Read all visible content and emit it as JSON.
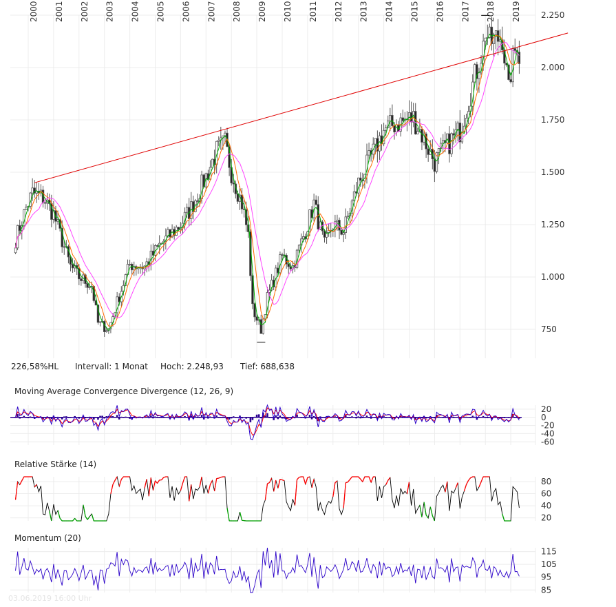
{
  "info": {
    "perf": "226,58%HL",
    "interval": "Intervall: 1 Monat",
    "high": "Hoch:  2.248,93",
    "low": "Tief:  688,638"
  },
  "footer": "03.06.2019 16:00 Uhr",
  "colors": {
    "up_candle": "#ffffff",
    "down_candle": "#222222",
    "candle_border": "#555555",
    "ma_short": "#00b000",
    "ma_mid": "#ff6a00",
    "ma_long": "#ff44ff",
    "trendline": "#e00000",
    "macd": "#2a00c8",
    "signal": "#ff0000",
    "histogram": "#2a0090",
    "rsi": "#000000",
    "rsi_extreme": "#ff0000",
    "momentum": "#2a00c8",
    "grid": "#ececec"
  },
  "chart_data": [
    {
      "type": "candlestick",
      "interval": "monthly",
      "x_ticks": [
        "2000",
        "2001",
        "2002",
        "2003",
        "2004",
        "2005",
        "2006",
        "2007",
        "2008",
        "2009",
        "2010",
        "2011",
        "2012",
        "2013",
        "2014",
        "2015",
        "2016",
        "2017",
        "2018",
        "2019"
      ],
      "y_ticks": [
        "750",
        "1.000",
        "1.250",
        "1.500",
        "1.750",
        "2.000",
        "2.250"
      ],
      "ylim": [
        620,
        2320
      ],
      "grid": true,
      "close_anchors": [
        [
          "1999-07",
          1180
        ],
        [
          "1999-12",
          1330
        ],
        [
          "2000-03",
          1400
        ],
        [
          "2000-08",
          1380
        ],
        [
          "2001-01",
          1300
        ],
        [
          "2001-09",
          1050
        ],
        [
          "2002-01",
          1000
        ],
        [
          "2002-07",
          960
        ],
        [
          "2002-10",
          780
        ],
        [
          "2003-03",
          750
        ],
        [
          "2003-07",
          880
        ],
        [
          "2004-01",
          1060
        ],
        [
          "2004-08",
          1050
        ],
        [
          "2005-03",
          1150
        ],
        [
          "2006-01",
          1250
        ],
        [
          "2006-06",
          1330
        ],
        [
          "2007-01",
          1480
        ],
        [
          "2007-06",
          1600
        ],
        [
          "2007-10",
          1640
        ],
        [
          "2008-01",
          1500
        ],
        [
          "2008-06",
          1350
        ],
        [
          "2008-09",
          1200
        ],
        [
          "2008-11",
          850
        ],
        [
          "2009-03",
          750
        ],
        [
          "2009-06",
          900
        ],
        [
          "2010-01",
          1100
        ],
        [
          "2010-06",
          1050
        ],
        [
          "2011-01",
          1250
        ],
        [
          "2011-04",
          1350
        ],
        [
          "2011-09",
          1150
        ],
        [
          "2012-01",
          1250
        ],
        [
          "2012-06",
          1220
        ],
        [
          "2013-01",
          1450
        ],
        [
          "2013-06",
          1550
        ],
        [
          "2014-01",
          1700
        ],
        [
          "2014-06",
          1730
        ],
        [
          "2015-03",
          1760
        ],
        [
          "2015-06",
          1700
        ],
        [
          "2016-01",
          1550
        ],
        [
          "2016-06",
          1620
        ],
        [
          "2017-01",
          1700
        ],
        [
          "2017-06",
          1880
        ],
        [
          "2017-12",
          2100
        ],
        [
          "2018-01",
          2180
        ],
        [
          "2018-03",
          2120
        ],
        [
          "2018-09",
          2150
        ],
        [
          "2018-12",
          1880
        ],
        [
          "2019-01",
          1980
        ],
        [
          "2019-04",
          2130
        ],
        [
          "2019-05",
          2060
        ]
      ],
      "high_mark": 2248.93,
      "low_mark": 688.638,
      "moving_averages": [
        "short",
        "mid",
        "long"
      ],
      "trendline": [
        [
          "2000-04",
          1450
        ],
        [
          "2021-04",
          2165
        ]
      ]
    },
    {
      "type": "line",
      "title": "Moving Average Convergence Divergence (12, 26, 9)",
      "y_ticks": [
        "20",
        "0",
        "-20",
        "-40",
        "-60"
      ],
      "ylim": [
        -68,
        30
      ]
    },
    {
      "type": "line",
      "title": "Relative Stärke (14)",
      "y_ticks": [
        "80",
        "60",
        "40",
        "20"
      ],
      "ylim": [
        15,
        88
      ]
    },
    {
      "type": "line",
      "title": "Momentum (20)",
      "y_ticks": [
        "115",
        "105",
        "95",
        "85"
      ],
      "ylim": [
        83,
        118
      ]
    }
  ]
}
